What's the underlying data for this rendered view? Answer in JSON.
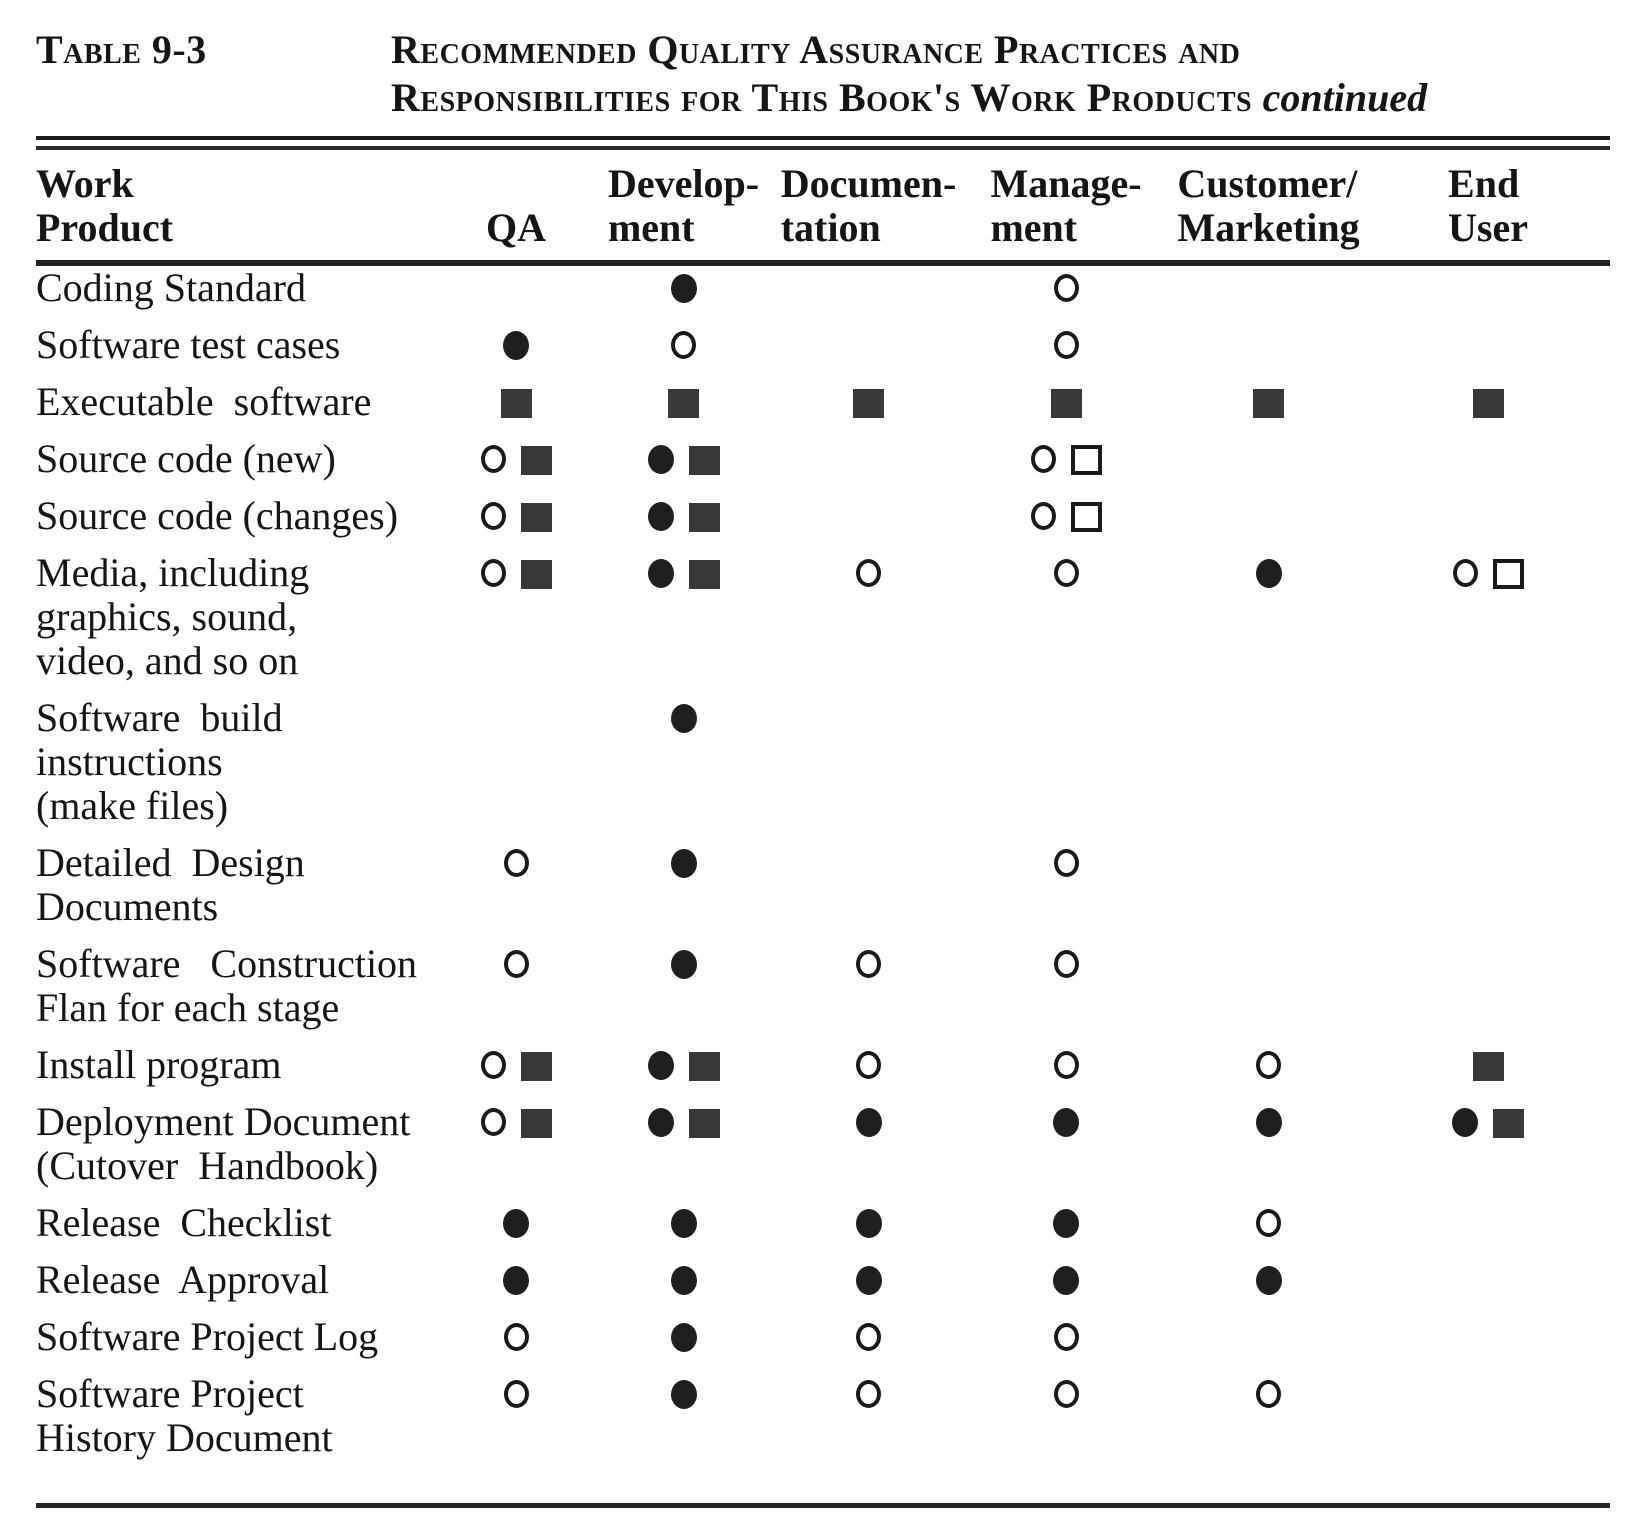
{
  "page": {
    "table_label": "Table 9-3",
    "title_line1": "Recommended Quality Assurance Practices and",
    "title_line2": "Responsibilities for This Book's Work Products",
    "title_continued": "continued"
  },
  "colors": {
    "ink": "#151515",
    "filled_square_fill": "#383838",
    "background": "#ffffff"
  },
  "symbols": {
    "filled-circle": "●",
    "open-circle": "○",
    "filled-square": "■",
    "open-square": "□"
  },
  "table": {
    "columns": [
      {
        "id": "work-product",
        "lines": [
          "Work",
          "Product"
        ]
      },
      {
        "id": "qa",
        "lines": [
          "QA"
        ]
      },
      {
        "id": "development",
        "lines": [
          "Develop-",
          "ment"
        ]
      },
      {
        "id": "documentation",
        "lines": [
          "Documen-",
          "tation"
        ]
      },
      {
        "id": "management",
        "lines": [
          "Manage-",
          "ment"
        ]
      },
      {
        "id": "customer-marketing",
        "lines": [
          "Customer/",
          "Marketing"
        ]
      },
      {
        "id": "end-user",
        "lines": [
          "End",
          "User"
        ]
      }
    ],
    "rows": [
      {
        "name_lines": [
          "Coding Standard"
        ],
        "cells": [
          [],
          [
            "filled-circle"
          ],
          [],
          [
            "open-circle"
          ],
          [],
          []
        ]
      },
      {
        "name_lines": [
          "Software test cases"
        ],
        "cells": [
          [
            "filled-circle"
          ],
          [
            "open-circle"
          ],
          [],
          [
            "open-circle"
          ],
          [],
          []
        ]
      },
      {
        "name_lines": [
          "Executable  software"
        ],
        "cells": [
          [
            "filled-square"
          ],
          [
            "filled-square"
          ],
          [
            "filled-square"
          ],
          [
            "filled-square"
          ],
          [
            "filled-square"
          ],
          [
            "filled-square"
          ]
        ]
      },
      {
        "name_lines": [
          "Source code (new)"
        ],
        "cells": [
          [
            "open-circle",
            "filled-square"
          ],
          [
            "filled-circle",
            "filled-square"
          ],
          [],
          [
            "open-circle",
            "open-square"
          ],
          [],
          []
        ]
      },
      {
        "name_lines": [
          "Source code (changes)"
        ],
        "cells": [
          [
            "open-circle",
            "filled-square"
          ],
          [
            "filled-circle",
            "filled-square"
          ],
          [],
          [
            "open-circle",
            "open-square"
          ],
          [],
          []
        ]
      },
      {
        "name_lines": [
          "Media, including",
          "graphics, sound,",
          "video, and so on"
        ],
        "cells": [
          [
            "open-circle",
            "filled-square"
          ],
          [
            "filled-circle",
            "filled-square"
          ],
          [
            "open-circle"
          ],
          [
            "open-circle"
          ],
          [
            "filled-circle"
          ],
          [
            "open-circle",
            "open-square"
          ]
        ]
      },
      {
        "name_lines": [
          "Software  build",
          "instructions",
          "(make files)"
        ],
        "cells": [
          [],
          [
            "filled-circle"
          ],
          [],
          [],
          [],
          []
        ]
      },
      {
        "name_lines": [
          "Detailed  Design",
          "Documents"
        ],
        "cells": [
          [
            "open-circle"
          ],
          [
            "filled-circle"
          ],
          [],
          [
            "open-circle"
          ],
          [],
          []
        ]
      },
      {
        "name_lines": [
          "Software   Construction",
          "Flan for each stage"
        ],
        "cells": [
          [
            "open-circle"
          ],
          [
            "filled-circle"
          ],
          [
            "open-circle"
          ],
          [
            "open-circle"
          ],
          [],
          []
        ]
      },
      {
        "name_lines": [
          "Install program"
        ],
        "cells": [
          [
            "open-circle",
            "filled-square"
          ],
          [
            "filled-circle",
            "filled-square"
          ],
          [
            "open-circle"
          ],
          [
            "open-circle"
          ],
          [
            "open-circle"
          ],
          [
            "filled-square"
          ]
        ]
      },
      {
        "name_lines": [
          "Deployment Document",
          "(Cutover  Handbook)"
        ],
        "cells": [
          [
            "open-circle",
            "filled-square"
          ],
          [
            "filled-circle",
            "filled-square"
          ],
          [
            "filled-circle"
          ],
          [
            "filled-circle"
          ],
          [
            "filled-circle"
          ],
          [
            "filled-circle",
            "filled-square"
          ]
        ]
      },
      {
        "name_lines": [
          "Release  Checklist"
        ],
        "cells": [
          [
            "filled-circle"
          ],
          [
            "filled-circle"
          ],
          [
            "filled-circle"
          ],
          [
            "filled-circle"
          ],
          [
            "open-circle"
          ],
          []
        ]
      },
      {
        "name_lines": [
          "Release  Approval"
        ],
        "cells": [
          [
            "filled-circle"
          ],
          [
            "filled-circle"
          ],
          [
            "filled-circle"
          ],
          [
            "filled-circle"
          ],
          [
            "filled-circle"
          ],
          []
        ]
      },
      {
        "name_lines": [
          "Software Project Log"
        ],
        "cells": [
          [
            "open-circle"
          ],
          [
            "filled-circle"
          ],
          [
            "open-circle"
          ],
          [
            "open-circle"
          ],
          [],
          []
        ]
      },
      {
        "name_lines": [
          "Software Project",
          "History Document"
        ],
        "cells": [
          [
            "open-circle"
          ],
          [
            "filled-circle"
          ],
          [
            "open-circle"
          ],
          [
            "open-circle"
          ],
          [
            "open-circle"
          ],
          []
        ]
      }
    ]
  }
}
